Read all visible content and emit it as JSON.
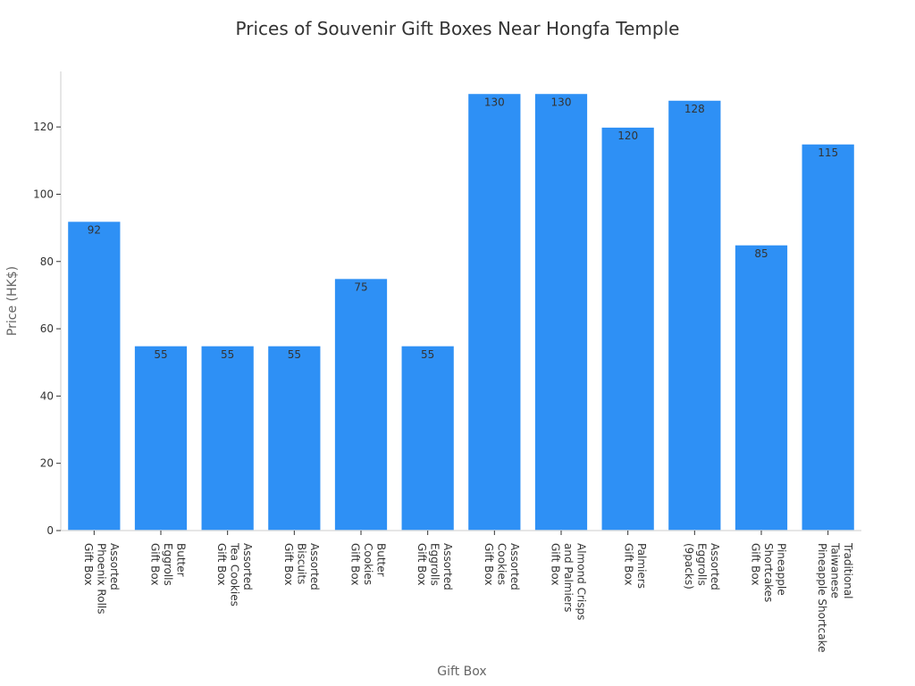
{
  "chart_data": {
    "type": "bar",
    "title": "Prices of Souvenir Gift Boxes Near Hongfa Temple",
    "xlabel": "Gift Box",
    "ylabel": "Price (HK$)",
    "ylim": [
      0,
      136.5
    ],
    "yticks": [
      0,
      20,
      40,
      60,
      80,
      100,
      120
    ],
    "grid": false,
    "bar_color": "#2e90f5",
    "categories": [
      [
        "Assorted",
        "Phoenix Rolls",
        "Gift Box"
      ],
      [
        "Butter",
        "Eggrolls",
        "Gift Box"
      ],
      [
        "Assorted",
        "Tea Cookies",
        "Gift Box"
      ],
      [
        "Assorted",
        "Biscuits",
        "Gift Box"
      ],
      [
        "Butter",
        "Cookies",
        "Gift Box"
      ],
      [
        "Assorted",
        "Eggrolls",
        "Gift Box"
      ],
      [
        "Assorted",
        "Cookies",
        "Gift Box"
      ],
      [
        "Almond Crisps",
        "and Palmiers",
        "Gift Box"
      ],
      [
        "Palmiers",
        "Gift Box"
      ],
      [
        "Assorted",
        "Eggrolls",
        "(9packs)"
      ],
      [
        "Pineapple",
        "Shortcakes",
        "Gift Box"
      ],
      [
        "Traditional",
        "Taiwanese",
        "Pineapple Shortcake"
      ]
    ],
    "values": [
      92,
      55,
      55,
      55,
      75,
      55,
      130,
      130,
      120,
      128,
      85,
      115
    ]
  }
}
